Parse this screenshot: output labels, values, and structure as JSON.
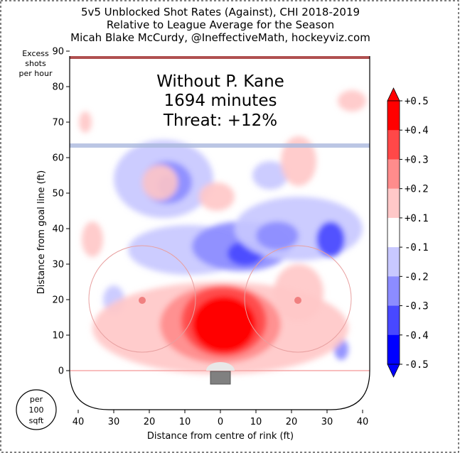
{
  "chart_data": {
    "type": "heatmap",
    "title_lines": [
      "5v5 Unblocked Shot Rates (Against), CHI 2018-2019",
      "Relative to League Average for the Season",
      "Micah Blake McCurdy, @IneffectiveMath, hockeyviz.com"
    ],
    "annotation_lines": [
      "Without P. Kane",
      "1694 minutes",
      "Threat: +12%"
    ],
    "units_label_lines": [
      "Excess",
      "shots",
      "per hour"
    ],
    "per_area_lines": [
      "per",
      "100",
      "sqft"
    ],
    "xlabel": "Distance from centre of rink (ft)",
    "ylabel": "Distance from goal line (ft)",
    "xlim": [
      -42,
      42
    ],
    "ylim": [
      -10,
      90
    ],
    "x_ticks": [
      40,
      30,
      20,
      10,
      0,
      10,
      20,
      30,
      40
    ],
    "y_ticks": [
      0,
      10,
      20,
      30,
      40,
      50,
      60,
      70,
      80,
      90
    ],
    "colorbar": {
      "labels": [
        "+0.5",
        "+0.4",
        "+0.3",
        "+0.2",
        "+0.1",
        "-0.1",
        "-0.2",
        "-0.3",
        "-0.4",
        "-0.5"
      ],
      "colors": [
        "#ff0000",
        "#ff4848",
        "#ff8c8c",
        "#ffc8c8",
        "#ffffff",
        "#c8c8ff",
        "#8c8cff",
        "#4848ff",
        "#0000ff"
      ],
      "extend_colors": [
        "#ff0000",
        "#0000ff"
      ]
    },
    "regions": [
      {
        "x": -16,
        "y": 54,
        "rx": 14,
        "ry": 11,
        "level": -0.15
      },
      {
        "x": -15,
        "y": 53,
        "rx": 7,
        "ry": 6,
        "level": -0.25
      },
      {
        "x": -15,
        "y": 52,
        "rx": 2.5,
        "ry": 3,
        "level": -0.35
      },
      {
        "x": -9,
        "y": 34,
        "rx": 17,
        "ry": 7,
        "level": -0.15
      },
      {
        "x": 6,
        "y": 35,
        "rx": 14,
        "ry": 7,
        "level": -0.2
      },
      {
        "x": 7,
        "y": 33,
        "rx": 5,
        "ry": 3.5,
        "level": -0.35
      },
      {
        "x": 22,
        "y": 40,
        "rx": 18,
        "ry": 9,
        "level": -0.15
      },
      {
        "x": 16,
        "y": 38,
        "rx": 6,
        "ry": 4,
        "level": -0.25
      },
      {
        "x": 31,
        "y": 37,
        "rx": 4,
        "ry": 5,
        "level": -0.3
      },
      {
        "x": 14,
        "y": 55,
        "rx": 5,
        "ry": 4,
        "level": -0.15
      },
      {
        "x": -30,
        "y": 20,
        "rx": 3,
        "ry": 4,
        "level": -0.15
      },
      {
        "x": 34,
        "y": 6,
        "rx": 2,
        "ry": 3,
        "level": -0.2
      },
      {
        "x": -17,
        "y": 53,
        "rx": 5,
        "ry": 5,
        "level": 0.15
      },
      {
        "x": -1,
        "y": 49,
        "rx": 5,
        "ry": 4,
        "level": 0.15
      },
      {
        "x": 22,
        "y": 59,
        "rx": 5,
        "ry": 7,
        "level": 0.15
      },
      {
        "x": 37,
        "y": 76,
        "rx": 4,
        "ry": 3,
        "level": 0.15
      },
      {
        "x": -38,
        "y": 70,
        "rx": 1.8,
        "ry": 3,
        "level": 0.15
      },
      {
        "x": -36,
        "y": 37,
        "rx": 3,
        "ry": 5,
        "level": 0.15
      },
      {
        "x": 0,
        "y": 12,
        "rx": 36,
        "ry": 13,
        "level": 0.15
      },
      {
        "x": 22,
        "y": 22,
        "rx": 7,
        "ry": 8,
        "level": 0.15
      },
      {
        "x": 0,
        "y": 13,
        "rx": 17,
        "ry": 11,
        "level": 0.25
      },
      {
        "x": 1,
        "y": 14,
        "rx": 12,
        "ry": 10,
        "level": 0.35
      },
      {
        "x": 1,
        "y": 13,
        "rx": 9,
        "ry": 8,
        "level": 0.45
      },
      {
        "x": 2,
        "y": 14,
        "rx": 6,
        "ry": 6,
        "level": 0.5
      }
    ]
  }
}
